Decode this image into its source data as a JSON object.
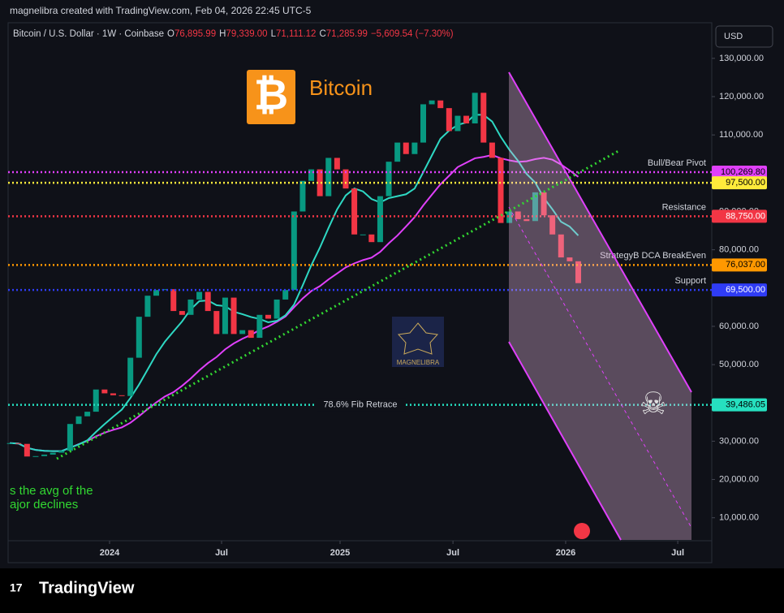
{
  "header": {
    "attribution": "magnelibra created with TradingView.com, Feb 04, 2026 22:45 UTC-5",
    "symbol": "Bitcoin / U.S. Dollar · 1W · Coinbase",
    "ohlc": [
      {
        "key": "O",
        "value": "76,895.99"
      },
      {
        "key": "H",
        "value": "79,339.00"
      },
      {
        "key": "L",
        "value": "71,111.12"
      },
      {
        "key": "C",
        "value": "71,285.99"
      }
    ],
    "change": "−5,609.54 (−7.30%)"
  },
  "logo_text": "Bitcoin",
  "currency": "USD",
  "watermark": "MAGNELIBRA",
  "note_lines": [
    "s the avg of the",
    "ajor declines"
  ],
  "brand": "TradingView",
  "chart_data": {
    "type": "candlestick",
    "x": [
      0,
      2,
      4,
      6,
      8,
      10,
      12,
      14,
      16,
      18,
      20,
      22,
      24,
      26,
      28,
      30,
      32,
      34,
      36,
      38,
      40,
      42,
      44,
      46,
      48,
      50,
      52,
      54,
      56,
      58,
      60,
      62,
      64,
      66,
      68,
      70,
      72,
      74,
      76,
      78,
      80,
      82,
      84,
      86,
      88,
      90,
      92,
      94,
      96,
      98,
      100,
      102,
      104,
      106,
      108,
      110,
      112,
      114,
      116,
      118,
      120,
      122,
      124,
      126,
      128,
      130,
      132
    ],
    "closes": [
      29500,
      29300,
      26000,
      26100,
      26500,
      27000,
      27500,
      34500,
      36500,
      37700,
      43500,
      42500,
      42000,
      41800,
      51800,
      62500,
      68000,
      69500,
      69700,
      64000,
      63000,
      67000,
      69000,
      64000,
      58000,
      67500,
      58000,
      59000,
      57000,
      63000,
      62000,
      67000,
      69500,
      90000,
      98000,
      101000,
      94000,
      104000,
      101000,
      96000,
      84000,
      84000,
      82000,
      94000,
      103000,
      108000,
      105000,
      108000,
      118000,
      119000,
      117000,
      111000,
      115000,
      113000,
      121000,
      108000,
      104000,
      87000,
      90000,
      88000,
      87500,
      95000,
      89000,
      84000,
      78000,
      77000,
      71285.99
    ],
    "up_color": "#089981",
    "down_color": "#f23645",
    "xlim": [
      -0.4,
      163
    ],
    "xticks": [
      {
        "value": 23.16,
        "label": "2024"
      },
      {
        "value": 49.17,
        "label": "Jul"
      },
      {
        "value": 76.68,
        "label": "2025"
      },
      {
        "value": 102.9,
        "label": "Jul"
      },
      {
        "value": 129.07,
        "label": "2026"
      },
      {
        "value": 155.1,
        "label": "Jul"
      }
    ],
    "ylim": [
      4000,
      139300
    ],
    "yticks": [
      {
        "value": 10000,
        "label": "10,000.00"
      },
      {
        "value": 20000,
        "label": "20,000.00"
      },
      {
        "value": 30000,
        "label": "30,000.00"
      },
      {
        "value": 40000,
        "label": "40,000.00"
      },
      {
        "value": 50000,
        "label": "50,000.00"
      },
      {
        "value": 60000,
        "label": "60,000.00"
      },
      {
        "value": 70000,
        "label": "70,000.00"
      },
      {
        "value": 80000,
        "label": "80,000.00"
      },
      {
        "value": 90000,
        "label": "90,000.00"
      },
      {
        "value": 100000,
        "label": "100,000.00"
      },
      {
        "value": 110000,
        "label": "110,000.00"
      },
      {
        "value": 120000,
        "label": "120,000.00"
      },
      {
        "value": 130000,
        "label": "130,000.00"
      }
    ],
    "levels": [
      {
        "name": "Bull/Bear Pivot",
        "value": 100269.8,
        "label": "100,269.80",
        "color": "#e040fb",
        "text_color": "#000000"
      },
      {
        "value": 97500,
        "label": "97,500.00",
        "color": "#ffeb3b",
        "text_color": "#000000"
      },
      {
        "name": "Resistance",
        "value": 88750,
        "label": "88,750.00",
        "color": "#f23645",
        "text_color": "#ffffff"
      },
      {
        "name": "StrategyB DCA BreakEven",
        "value": 76037,
        "label": "76,037.00",
        "color": "#ff9800",
        "text_color": "#000000"
      },
      {
        "name": "Support",
        "value": 69500,
        "label": "69,500.00",
        "color": "#2f3cf5",
        "text_color": "#ffffff"
      },
      {
        "name": "78.6% Fib Retrace",
        "value": 39486.05,
        "label": "39,486.05",
        "color": "#26e0c0",
        "text_color": "#000000",
        "name_position": "center"
      }
    ]
  }
}
